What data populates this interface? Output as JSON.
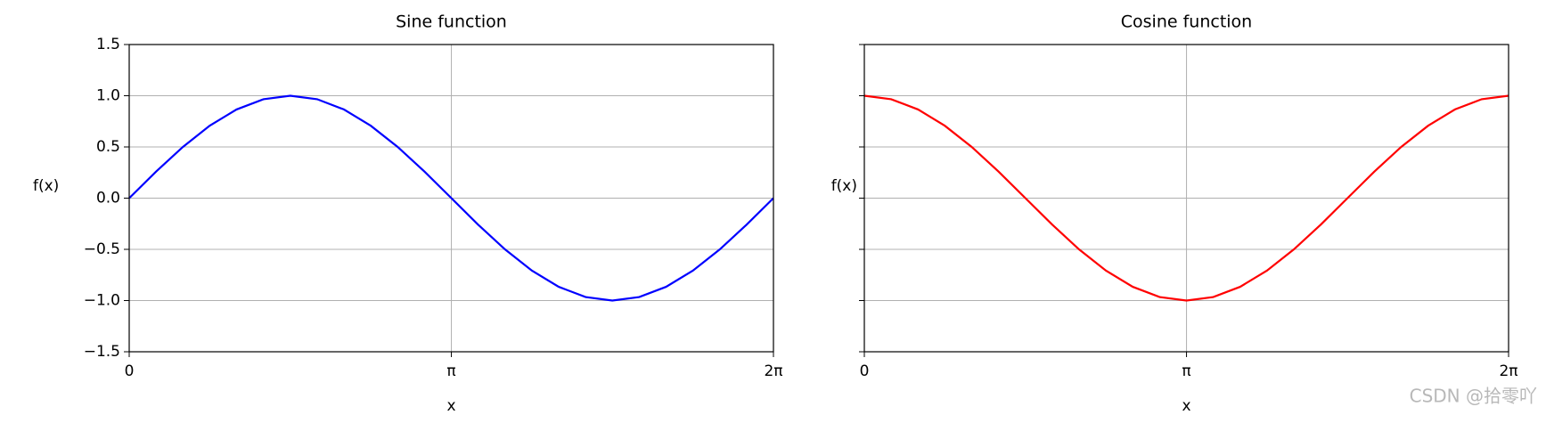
{
  "chart_data": [
    {
      "type": "line",
      "title": "Sine function",
      "xlabel": "x",
      "ylabel": "f(x)",
      "x": [
        0,
        0.262,
        0.524,
        0.785,
        1.047,
        1.309,
        1.571,
        1.833,
        2.094,
        2.356,
        2.618,
        2.88,
        3.142,
        3.403,
        3.665,
        3.927,
        4.189,
        4.451,
        4.712,
        4.974,
        5.236,
        5.498,
        5.76,
        6.021,
        6.283
      ],
      "series": [
        {
          "color": "#0000ff",
          "values": [
            0,
            0.259,
            0.5,
            0.707,
            0.866,
            0.966,
            1,
            0.966,
            0.866,
            0.707,
            0.5,
            0.259,
            0,
            -0.259,
            -0.5,
            -0.707,
            -0.866,
            -0.966,
            -1,
            -0.966,
            -0.866,
            -0.707,
            -0.5,
            -0.259,
            0
          ]
        }
      ],
      "xlim": [
        0,
        6.283
      ],
      "xticks": [
        0,
        {
          "value": 3.142,
          "label": "π"
        },
        {
          "value": 6.283,
          "label": "2π"
        }
      ],
      "ylim": [
        -1.5,
        1.5
      ],
      "yticks": [
        {
          "value": -1.5,
          "label": "−1.5"
        },
        {
          "value": -1,
          "label": "−1.0"
        },
        {
          "value": -0.5,
          "label": "−0.5"
        },
        {
          "value": 0,
          "label": "0.0"
        },
        0.5,
        {
          "value": 1,
          "label": "1.0"
        },
        1.5
      ],
      "grid": true
    },
    {
      "type": "line",
      "title": "Cosine function",
      "xlabel": "x",
      "ylabel": "f(x)",
      "x": [
        0,
        0.262,
        0.524,
        0.785,
        1.047,
        1.309,
        1.571,
        1.833,
        2.094,
        2.356,
        2.618,
        2.88,
        3.142,
        3.403,
        3.665,
        3.927,
        4.189,
        4.451,
        4.712,
        4.974,
        5.236,
        5.498,
        5.76,
        6.021,
        6.283
      ],
      "series": [
        {
          "color": "#ff0000",
          "values": [
            1,
            0.966,
            0.866,
            0.707,
            0.5,
            0.259,
            0,
            -0.259,
            -0.5,
            -0.707,
            -0.866,
            -0.966,
            -1,
            -0.966,
            -0.866,
            -0.707,
            -0.5,
            -0.259,
            0,
            0.259,
            0.5,
            0.707,
            0.866,
            0.966,
            1
          ]
        }
      ],
      "xlim": [
        0,
        6.283
      ],
      "xticks": [
        0,
        {
          "value": 3.142,
          "label": "π"
        },
        {
          "value": 6.283,
          "label": "2π"
        }
      ],
      "ylim": [
        -1.5,
        1.5
      ],
      "yticks": [
        -1.5,
        -1,
        -0.5,
        0,
        0.5,
        1,
        1.5
      ],
      "sharey": true,
      "grid": true
    }
  ],
  "watermark": "CSDN @拾零吖"
}
